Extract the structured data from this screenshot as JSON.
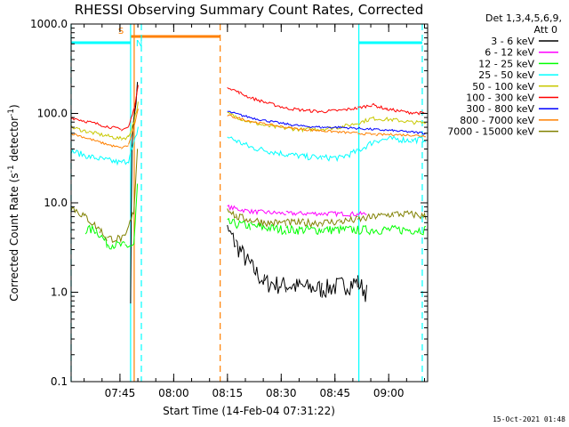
{
  "chart_data": {
    "type": "line",
    "title": "RHESSI Observing Summary Count Rates, Corrected",
    "xlabel": "Start Time (14-Feb-04 07:31:22)",
    "ylabel_parts": {
      "base": "Corrected Count Rate (s",
      "sup1": "-1",
      "mid": " detector",
      "sup2": "-1",
      "end": ")"
    },
    "ylabel": "Corrected Count Rate (s^-1 detector^-1)",
    "y_scale": "log",
    "ylim": [
      0.1,
      1000
    ],
    "y_ticks": [
      {
        "value": 1000,
        "label": "1000.0"
      },
      {
        "value": 100,
        "label": "100.0"
      },
      {
        "value": 10,
        "label": "10.0"
      },
      {
        "value": 1,
        "label": "1.0"
      },
      {
        "value": 0.1,
        "label": "0.1"
      }
    ],
    "xlim_minutes": [
      0,
      99.5
    ],
    "x_major_ticks": [
      {
        "minute": 13.63,
        "label": "07:45"
      },
      {
        "minute": 28.63,
        "label": "08:00"
      },
      {
        "minute": 43.63,
        "label": "08:15"
      },
      {
        "minute": 58.63,
        "label": "08:30"
      },
      {
        "minute": 73.63,
        "label": "08:45"
      },
      {
        "minute": 88.63,
        "label": "09:00"
      }
    ],
    "legend_header": [
      "Det 1,3,4,5,6,9,",
      "Att 0"
    ],
    "legend_placement": "outside-right",
    "series": [
      {
        "name": "3 - 6 keV",
        "color": "#000000",
        "noise": 0.25,
        "points": [
          [
            16.6,
            1
          ],
          [
            17.0,
            50
          ],
          [
            18.5,
            200
          ],
          [
            19,
            null
          ],
          [
            43.6,
            5
          ],
          [
            46,
            3.5
          ],
          [
            50,
            2
          ],
          [
            54,
            1.3
          ],
          [
            60,
            1.2
          ],
          [
            70,
            1.1
          ],
          [
            80,
            1.3
          ],
          [
            82.5,
            1
          ]
        ]
      },
      {
        "name": "6 - 12 keV",
        "color": "#ff00ff",
        "noise": 0.06,
        "points": [
          [
            43.6,
            9
          ],
          [
            50,
            8
          ],
          [
            60,
            7.6
          ],
          [
            70,
            7.6
          ],
          [
            80,
            7.5
          ],
          [
            82.5,
            7.5
          ]
        ]
      },
      {
        "name": "12 - 25 keV",
        "color": "#00ff00",
        "noise": 0.12,
        "points": [
          [
            4,
            5
          ],
          [
            7,
            5
          ],
          [
            10,
            3.5
          ],
          [
            15,
            3.3
          ],
          [
            17.5,
            3.3
          ],
          [
            18.5,
            15
          ],
          [
            19,
            null
          ],
          [
            43.6,
            6
          ],
          [
            50,
            5.5
          ],
          [
            60,
            5
          ],
          [
            70,
            5
          ],
          [
            80,
            5
          ],
          [
            87,
            5
          ],
          [
            99,
            5
          ]
        ]
      },
      {
        "name": "25 - 50 keV",
        "color": "#00ffff",
        "noise": 0.08,
        "points": [
          [
            0,
            38
          ],
          [
            5,
            33
          ],
          [
            10,
            30
          ],
          [
            14,
            28
          ],
          [
            16,
            30
          ],
          [
            17.5,
            45
          ],
          [
            18.7,
            70
          ],
          [
            19,
            null
          ],
          [
            43.6,
            55
          ],
          [
            50,
            42
          ],
          [
            55,
            38
          ],
          [
            60,
            35
          ],
          [
            65,
            33
          ],
          [
            70,
            32
          ],
          [
            75,
            32
          ],
          [
            80,
            38
          ],
          [
            85,
            50
          ],
          [
            90,
            52
          ],
          [
            95,
            50
          ],
          [
            99,
            52
          ]
        ]
      },
      {
        "name": "50 - 100 keV",
        "color": "#c8c800",
        "noise": 0.05,
        "points": [
          [
            0,
            70
          ],
          [
            5,
            62
          ],
          [
            10,
            56
          ],
          [
            14,
            52
          ],
          [
            16,
            55
          ],
          [
            17.5,
            80
          ],
          [
            18.7,
            130
          ],
          [
            19,
            null
          ],
          [
            43.6,
            100
          ],
          [
            50,
            80
          ],
          [
            55,
            72
          ],
          [
            60,
            68
          ],
          [
            65,
            66
          ],
          [
            70,
            67
          ],
          [
            75,
            70
          ],
          [
            80,
            78
          ],
          [
            84,
            88
          ],
          [
            90,
            85
          ],
          [
            95,
            80
          ],
          [
            99,
            78
          ]
        ]
      },
      {
        "name": "100 - 300 keV",
        "color": "#ff0000",
        "noise": 0.04,
        "points": [
          [
            0,
            90
          ],
          [
            5,
            80
          ],
          [
            10,
            72
          ],
          [
            14,
            66
          ],
          [
            16,
            70
          ],
          [
            17.5,
            110
          ],
          [
            18.7,
            200
          ],
          [
            19,
            null
          ],
          [
            43.6,
            200
          ],
          [
            47,
            170
          ],
          [
            50,
            150
          ],
          [
            55,
            130
          ],
          [
            60,
            115
          ],
          [
            65,
            108
          ],
          [
            70,
            105
          ],
          [
            75,
            108
          ],
          [
            80,
            115
          ],
          [
            84,
            125
          ],
          [
            88,
            112
          ],
          [
            94,
            103
          ],
          [
            99,
            100
          ]
        ]
      },
      {
        "name": "300 - 800 keV",
        "color": "#0000ff",
        "noise": 0.03,
        "points": [
          [
            43.6,
            105
          ],
          [
            50,
            90
          ],
          [
            55,
            82
          ],
          [
            60,
            76
          ],
          [
            65,
            72
          ],
          [
            70,
            70
          ],
          [
            75,
            70
          ],
          [
            80,
            68
          ],
          [
            85,
            66
          ],
          [
            90,
            64
          ],
          [
            95,
            62
          ],
          [
            99,
            60
          ]
        ]
      },
      {
        "name": "800 - 7000 keV",
        "color": "#ff8000",
        "noise": 0.03,
        "points": [
          [
            0,
            60
          ],
          [
            5,
            52
          ],
          [
            10,
            45
          ],
          [
            14,
            41
          ],
          [
            16,
            44
          ],
          [
            17.5,
            70
          ],
          [
            18.7,
            110
          ],
          [
            19,
            null
          ],
          [
            43.6,
            95
          ],
          [
            50,
            82
          ],
          [
            55,
            75
          ],
          [
            60,
            70
          ],
          [
            65,
            66
          ],
          [
            70,
            64
          ],
          [
            75,
            62
          ],
          [
            80,
            60
          ],
          [
            85,
            58
          ],
          [
            90,
            58
          ],
          [
            95,
            57
          ],
          [
            99,
            56
          ]
        ]
      },
      {
        "name": "7000 - 15000 keV",
        "color": "#808000",
        "noise": 0.1,
        "points": [
          [
            0,
            9
          ],
          [
            4,
            7
          ],
          [
            8,
            5
          ],
          [
            10,
            4
          ],
          [
            15,
            4
          ],
          [
            17.5,
            8
          ],
          [
            18.5,
            40
          ],
          [
            19,
            null
          ],
          [
            43.6,
            9
          ],
          [
            46,
            7
          ],
          [
            50,
            6.5
          ],
          [
            55,
            6
          ],
          [
            60,
            6
          ],
          [
            65,
            6
          ],
          [
            70,
            6
          ],
          [
            75,
            6.2
          ],
          [
            80,
            6.5
          ],
          [
            85,
            7
          ],
          [
            90,
            7.5
          ],
          [
            95,
            7.5
          ],
          [
            99,
            7
          ]
        ]
      }
    ],
    "intervals": [
      {
        "kind": "night",
        "color": "#00ffff",
        "start": 0,
        "end": 16.6,
        "label": "N",
        "label_at": "end"
      },
      {
        "kind": "night",
        "color": "#00ffff",
        "start": 80.3,
        "end": 98.0,
        "label": "",
        "label_at": "end"
      },
      {
        "kind": "saa",
        "color": "#ff8000",
        "start": 16.6,
        "end": 41.6,
        "label": "S",
        "label_at": "start"
      }
    ],
    "vertical_lines": [
      {
        "minute": 0.0,
        "color": "#00ffff",
        "style": "dashed"
      },
      {
        "minute": 16.6,
        "color": "#00ffff",
        "style": "solid"
      },
      {
        "minute": 17.6,
        "color": "#ff8000",
        "style": "solid"
      },
      {
        "minute": 19.6,
        "color": "#00ffff",
        "style": "dashed"
      },
      {
        "minute": 41.6,
        "color": "#ff8000",
        "style": "dashed"
      },
      {
        "minute": 80.3,
        "color": "#00ffff",
        "style": "solid"
      },
      {
        "minute": 98.0,
        "color": "#00ffff",
        "style": "dashed"
      }
    ],
    "grid": false
  },
  "stamp": "15-Oct-2021 01:48"
}
